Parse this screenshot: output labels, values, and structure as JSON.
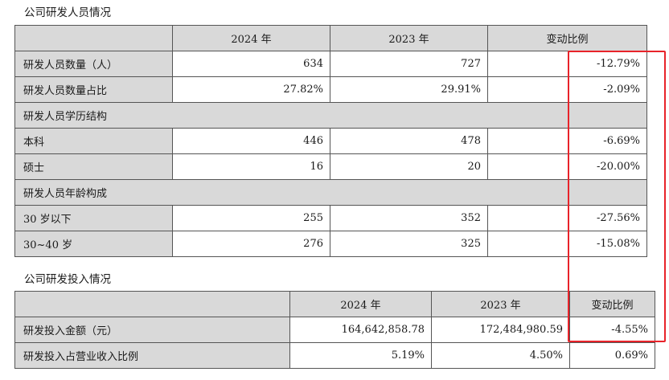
{
  "personnel": {
    "title": "公司研发人员情况",
    "headers": [
      "",
      "2024 年",
      "2023 年",
      "变动比例"
    ],
    "rows": [
      {
        "label": "研发人员数量（人）",
        "v2024": "634",
        "v2023": "727",
        "change": "-12.79%"
      },
      {
        "label": "研发人员数量占比",
        "v2024": "27.82%",
        "v2023": "29.91%",
        "change": "-2.09%"
      },
      {
        "label": "研发人员学历结构",
        "group": true
      },
      {
        "label": "本科",
        "v2024": "446",
        "v2023": "478",
        "change": "-6.69%"
      },
      {
        "label": "硕士",
        "v2024": "16",
        "v2023": "20",
        "change": "-20.00%"
      },
      {
        "label": "研发人员年龄构成",
        "group": true
      },
      {
        "label": "30 岁以下",
        "v2024": "255",
        "v2023": "352",
        "change": "-27.56%"
      },
      {
        "label": "30~40 岁",
        "v2024": "276",
        "v2023": "325",
        "change": "-15.08%"
      }
    ]
  },
  "investment": {
    "title": "公司研发投入情况",
    "headers": [
      "",
      "2024 年",
      "2023 年",
      "变动比例"
    ],
    "rows": [
      {
        "label": "研发投入金额（元）",
        "v2024": "164,642,858.78",
        "v2023": "172,484,980.59",
        "change": "-4.55%"
      },
      {
        "label": "研发投入占营业收入比例",
        "v2024": "5.19%",
        "v2023": "4.50%",
        "change": "0.69%"
      }
    ]
  },
  "colors": {
    "header_bg": "#d9d9d9",
    "highlight": "#e8232a"
  }
}
